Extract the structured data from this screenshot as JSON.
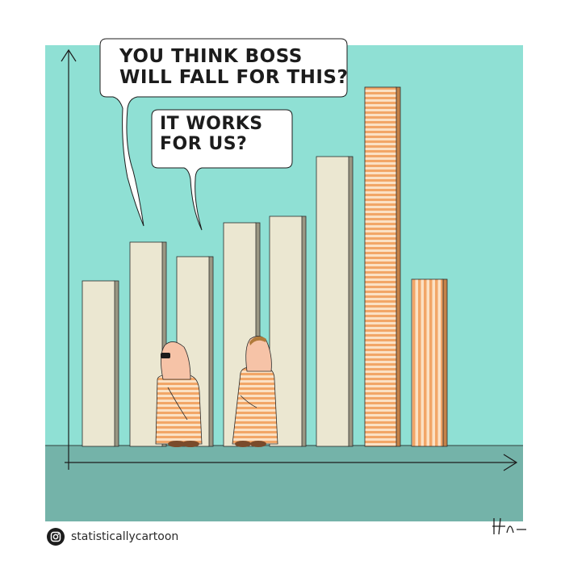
{
  "speech_bubble_1": {
    "lines": [
      "YOU THINK BOSS",
      "WILL FALL FOR THIS?"
    ]
  },
  "speech_bubble_2": {
    "lines": [
      "IT WORKS",
      "FOR US?"
    ]
  },
  "credit": {
    "handle": "statisticallycartoon",
    "icon": "instagram-icon"
  },
  "colors": {
    "background": "#8fe0d4",
    "floor": "#74b3a9",
    "bar": "#ebe7d1",
    "bar_shadow": "#9a9783",
    "stripe_orange": "#f2a667",
    "skin": "#f6c3a7",
    "ink": "#1c1c1c"
  }
}
